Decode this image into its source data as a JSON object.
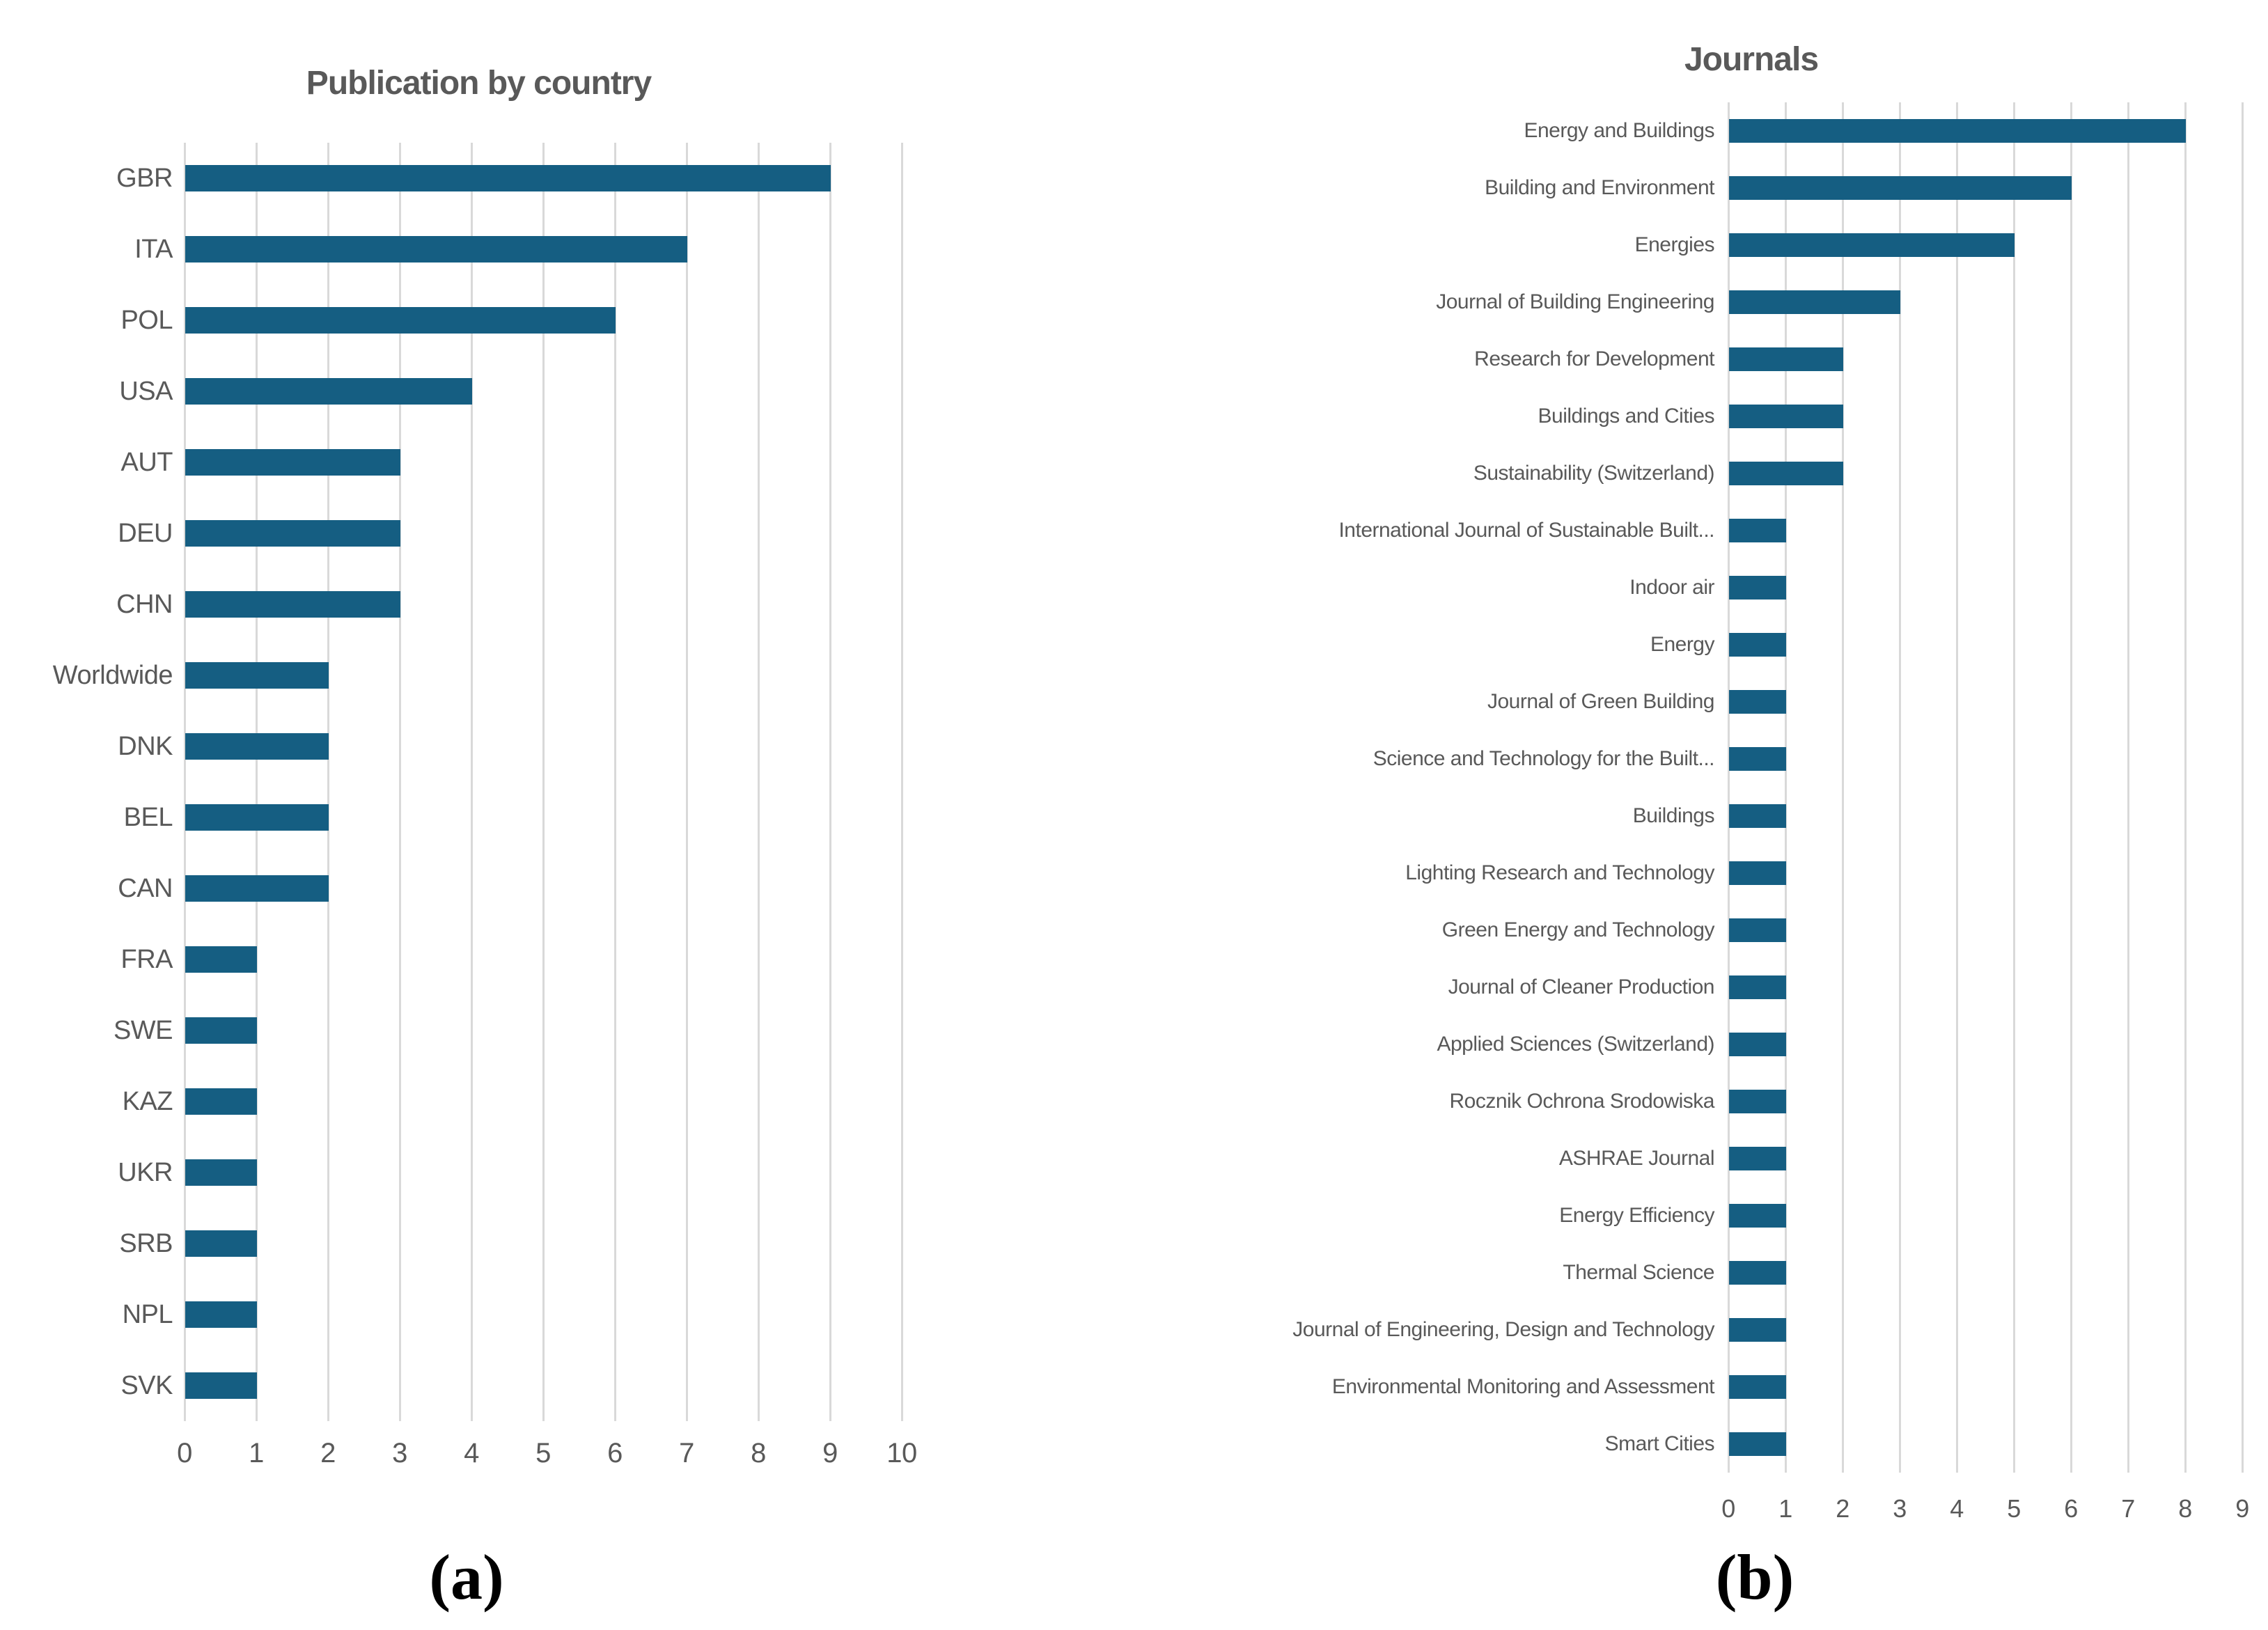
{
  "figure": {
    "captions": {
      "a": "(a)",
      "b": "(b)"
    }
  },
  "colors": {
    "bar": "#155E82",
    "gridline": "#D9D9D9",
    "axis_text": "#595959",
    "title_text": "#595959",
    "caption_text": "#000000"
  },
  "chart_data": [
    {
      "id": "publication-by-country",
      "type": "bar",
      "orientation": "horizontal",
      "title": "Publication by country",
      "categories": [
        "GBR",
        "ITA",
        "POL",
        "USA",
        "AUT",
        "DEU",
        "CHN",
        "Worldwide",
        "DNK",
        "BEL",
        "CAN",
        "FRA",
        "SWE",
        "KAZ",
        "UKR",
        "SRB",
        "NPL",
        "SVK"
      ],
      "values": [
        9,
        7,
        6,
        4,
        3,
        3,
        3,
        2,
        2,
        2,
        2,
        1,
        1,
        1,
        1,
        1,
        1,
        1
      ],
      "xlabel": "",
      "ylabel": "",
      "xlim": [
        0,
        10
      ],
      "xticks": [
        0,
        1,
        2,
        3,
        4,
        5,
        6,
        7,
        8,
        9,
        10
      ],
      "grid": true,
      "legend_position": "none"
    },
    {
      "id": "journals",
      "type": "bar",
      "orientation": "horizontal",
      "title": "Journals",
      "categories": [
        "Energy and Buildings",
        "Building and Environment",
        "Energies",
        "Journal of Building Engineering",
        "Research for Development",
        "Buildings and Cities",
        "Sustainability (Switzerland)",
        "International Journal of Sustainable Built...",
        "Indoor air",
        "Energy",
        "Journal of Green Building",
        "Science and Technology for the Built...",
        "Buildings",
        "Lighting Research and Technology",
        "Green Energy and Technology",
        "Journal of Cleaner Production",
        "Applied Sciences (Switzerland)",
        "Rocznik Ochrona Srodowiska",
        "ASHRAE Journal",
        "Energy Efficiency",
        "Thermal Science",
        "Journal of Engineering, Design and Technology",
        "Environmental Monitoring and Assessment",
        "Smart Cities"
      ],
      "values": [
        8,
        6,
        5,
        3,
        2,
        2,
        2,
        1,
        1,
        1,
        1,
        1,
        1,
        1,
        1,
        1,
        1,
        1,
        1,
        1,
        1,
        1,
        1,
        1
      ],
      "xlabel": "",
      "ylabel": "",
      "xlim": [
        0,
        9
      ],
      "xticks": [
        0,
        1,
        2,
        3,
        4,
        5,
        6,
        7,
        8,
        9
      ],
      "grid": true,
      "legend_position": "none"
    }
  ]
}
